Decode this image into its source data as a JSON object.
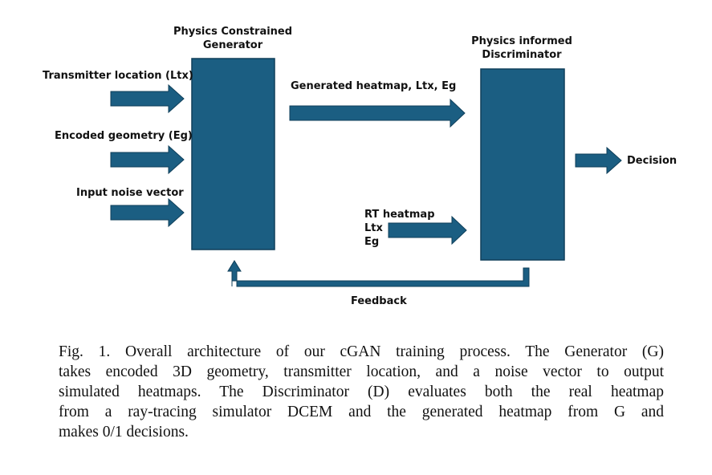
{
  "generator": {
    "title_line1": "Physics Constrained",
    "title_line2": "Generator"
  },
  "discriminator": {
    "title_line1": "Physics informed",
    "title_line2": "Discriminator"
  },
  "inputs": {
    "transmitter": "Transmitter location (Ltx)",
    "geometry": "Encoded geometry (Eg)",
    "noise": "Input noise vector"
  },
  "generated_label": "Generated heatmap, Ltx, Eg",
  "real_inputs": {
    "line1": "RT heatmap",
    "line2": "Ltx",
    "line3": "Eg"
  },
  "decision_label": "Decision",
  "feedback_label": "Feedback",
  "colors": {
    "block_fill": "#1b5e82",
    "block_stroke": "#0f3f5a",
    "arrow_fill": "#1b5e82"
  },
  "caption": {
    "line1": "Fig. 1.  Overall architecture of our cGAN training process. The Generator (G)",
    "line2": "takes encoded 3D geometry, transmitter location, and a noise vector to output",
    "line3": "simulated heatmaps. The Discriminator (D) evaluates both the real heatmap",
    "line4": "from a ray-tracing simulator DCEM and the generated heatmap from G and",
    "line5": "makes 0/1 decisions."
  }
}
